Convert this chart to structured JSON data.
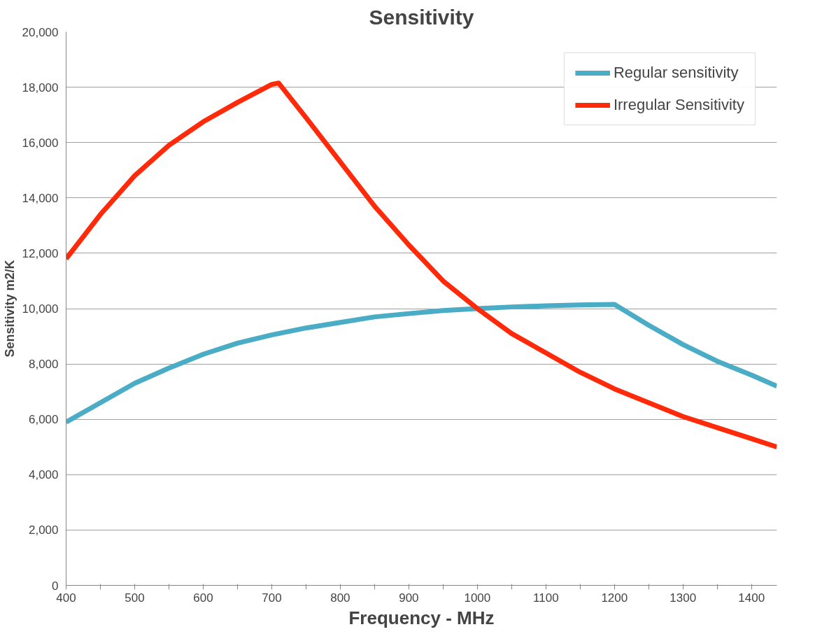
{
  "chart_data": {
    "type": "line",
    "title": "Sensitivity",
    "xlabel": "Frequency - MHz",
    "ylabel": "Sensitivity m2/K",
    "x": [
      400,
      450,
      500,
      550,
      600,
      650,
      700,
      710,
      750,
      800,
      850,
      900,
      950,
      1000,
      1050,
      1100,
      1150,
      1200,
      1250,
      1300,
      1350,
      1400,
      1437
    ],
    "series": [
      {
        "name": "Regular sensitivity",
        "color": "#4bacc6",
        "values": [
          5900,
          6600,
          7300,
          7850,
          8350,
          8750,
          9050,
          9100,
          9300,
          9500,
          9700,
          9820,
          9930,
          10000,
          10060,
          10100,
          10130,
          10150,
          9400,
          8700,
          8100,
          7600,
          7200
        ]
      },
      {
        "name": "Irregular Sensitivity",
        "color": "#ff2a0a",
        "values": [
          11800,
          13400,
          14800,
          15900,
          16750,
          17450,
          18100,
          18150,
          16900,
          15300,
          13700,
          12300,
          11000,
          10000,
          9100,
          8400,
          7700,
          7100,
          6600,
          6100,
          5700,
          5300,
          5000
        ]
      }
    ],
    "xlim": [
      400,
      1437
    ],
    "ylim": [
      0,
      20000
    ],
    "xticks": [
      400,
      {
        "value": 450,
        "label": null
      },
      500,
      {
        "value": 550,
        "label": null
      },
      600,
      {
        "value": 650,
        "label": null
      },
      700,
      {
        "value": 750,
        "label": null
      },
      800,
      {
        "value": 850,
        "label": null
      },
      900,
      {
        "value": 950,
        "label": null
      },
      1000,
      {
        "value": 1050,
        "label": null
      },
      1100,
      {
        "value": 1150,
        "label": null
      },
      1200,
      {
        "value": 1250,
        "label": null
      },
      1300,
      {
        "value": 1350,
        "label": null
      },
      1400
    ],
    "yticks": [
      0,
      {
        "value": 2000,
        "label": "2,000"
      },
      {
        "value": 4000,
        "label": "4,000"
      },
      {
        "value": 6000,
        "label": "6,000"
      },
      {
        "value": 8000,
        "label": "8,000"
      },
      {
        "value": 10000,
        "label": "10,000"
      },
      {
        "value": 12000,
        "label": "12,000"
      },
      {
        "value": 14000,
        "label": "14,000"
      },
      {
        "value": 16000,
        "label": "16,000"
      },
      {
        "value": 18000,
        "label": "18,000"
      },
      {
        "value": 20000,
        "label": "20,000"
      }
    ],
    "grid": "y",
    "legend": "top right",
    "line_style": "solid",
    "marker": "none"
  }
}
